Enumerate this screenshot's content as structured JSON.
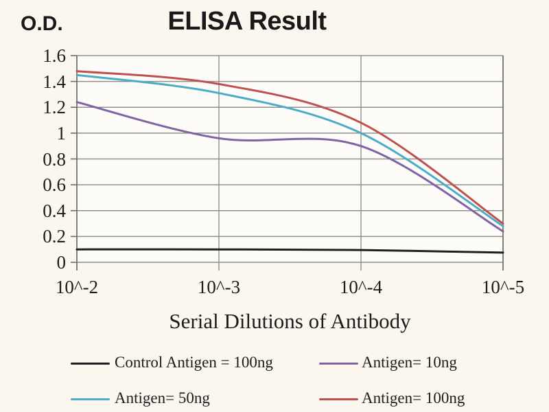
{
  "chart_data": {
    "type": "line",
    "title": "ELISA Result",
    "xlabel": "Serial Dilutions of Antibody",
    "ylabel": "O.D.",
    "x_tick_labels": [
      "10^-2",
      "10^-3",
      "10^-4",
      "10^-5"
    ],
    "y_ticks": [
      1.6,
      1.4,
      1.2,
      1,
      0.8,
      0.6,
      0.4,
      0.2,
      0
    ],
    "ylim": [
      0,
      1.6
    ],
    "grid": true,
    "legend_position": "bottom",
    "legend_rows": [
      [
        0,
        1
      ],
      [
        2,
        3
      ]
    ],
    "series": [
      {
        "name": "Control Antigen = 100ng",
        "color": "#1f1f1f",
        "values": [
          0.1,
          0.1,
          0.095,
          0.075
        ]
      },
      {
        "name": "Antigen= 10ng",
        "color": "#8064a2",
        "values": [
          1.24,
          0.96,
          0.9,
          0.24
        ]
      },
      {
        "name": "Antigen= 50ng",
        "color": "#4bacc6",
        "values": [
          1.45,
          1.31,
          1.0,
          0.28
        ]
      },
      {
        "name": "Antigen= 100ng",
        "color": "#c0504d",
        "values": [
          1.48,
          1.38,
          1.08,
          0.3
        ]
      }
    ]
  },
  "style": {
    "background": "#fbf6ee",
    "plot_background": "#fdfcf8",
    "grid_color": "#8f8f8f",
    "axis_color": "#6b6b6b",
    "text_color": "#1c1c1c"
  }
}
